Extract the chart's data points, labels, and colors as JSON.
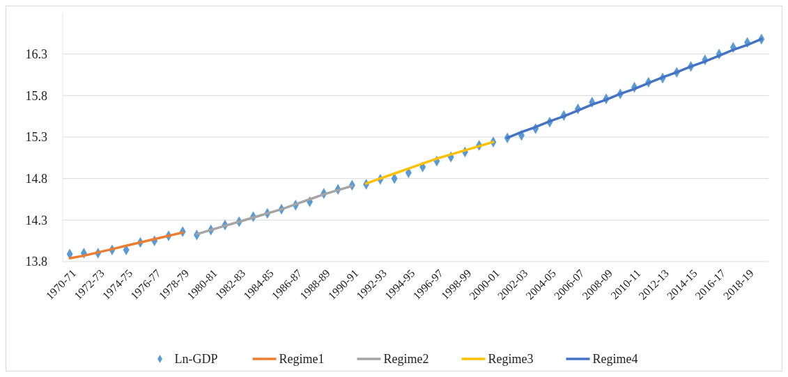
{
  "chart_data": {
    "type": "line",
    "categories": [
      "1970-71",
      null,
      "1972-73",
      null,
      "1974-75",
      null,
      "1976-77",
      null,
      "1978-79",
      null,
      "1980-81",
      null,
      "1982-83",
      null,
      "1984-85",
      null,
      "1986-87",
      null,
      "1988-89",
      null,
      "1990-91",
      null,
      "1992-93",
      null,
      "1994-95",
      null,
      "1996-97",
      null,
      "1998-99",
      null,
      "2000-01",
      null,
      "2002-03",
      null,
      "2004-05",
      null,
      "2006-07",
      null,
      "2008-09",
      null,
      "2010-11",
      null,
      "2012-13",
      null,
      "2014-15",
      null,
      "2016-17",
      null,
      "2018-19",
      null
    ],
    "ylim": [
      13.8,
      16.8
    ],
    "yticks": [
      13.8,
      14.3,
      14.8,
      15.3,
      15.8,
      16.3
    ],
    "grid": "y",
    "legend": "bottom",
    "series": [
      {
        "name": "Ln-GDP",
        "type": "scatter",
        "marker": "diamond",
        "color": "#5b9bd5",
        "values": [
          13.89,
          13.9,
          13.9,
          13.94,
          13.94,
          14.03,
          14.05,
          14.11,
          14.16,
          14.12,
          14.18,
          14.24,
          14.28,
          14.34,
          14.38,
          14.43,
          14.48,
          14.52,
          14.62,
          14.67,
          14.72,
          14.73,
          14.79,
          14.8,
          14.87,
          14.94,
          15.01,
          15.06,
          15.12,
          15.2,
          15.24,
          15.29,
          15.32,
          15.4,
          15.48,
          15.56,
          15.64,
          15.72,
          15.76,
          15.82,
          15.9,
          15.96,
          16.01,
          16.08,
          16.15,
          16.23,
          16.3,
          16.38,
          16.44,
          16.48
        ]
      },
      {
        "name": "Regime1",
        "marker": "none",
        "color": "#ed7d31",
        "values": [
          13.84,
          13.87,
          13.91,
          13.95,
          13.99,
          14.03,
          14.07,
          14.11,
          14.15,
          null,
          null,
          null,
          null,
          null,
          null,
          null,
          null,
          null,
          null,
          null,
          null,
          null,
          null,
          null,
          null,
          null,
          null,
          null,
          null,
          null,
          null,
          null,
          null,
          null,
          null,
          null,
          null,
          null,
          null,
          null,
          null,
          null,
          null,
          null,
          null,
          null,
          null,
          null,
          null,
          null
        ]
      },
      {
        "name": "Regime2",
        "marker": "none",
        "color": "#a5a5a5",
        "values": [
          null,
          null,
          null,
          null,
          null,
          null,
          null,
          null,
          null,
          14.13,
          14.18,
          14.23,
          14.28,
          14.33,
          14.38,
          14.43,
          14.49,
          14.55,
          14.61,
          14.66,
          14.71,
          null,
          null,
          null,
          null,
          null,
          null,
          null,
          null,
          null,
          null,
          null,
          null,
          null,
          null,
          null,
          null,
          null,
          null,
          null,
          null,
          null,
          null,
          null,
          null,
          null,
          null,
          null,
          null,
          null
        ]
      },
      {
        "name": "Regime3",
        "marker": "none",
        "color": "#ffc000",
        "values": [
          null,
          null,
          null,
          null,
          null,
          null,
          null,
          null,
          null,
          null,
          null,
          null,
          null,
          null,
          null,
          null,
          null,
          null,
          null,
          null,
          null,
          14.74,
          14.8,
          14.86,
          14.92,
          14.98,
          15.04,
          15.09,
          15.14,
          15.19,
          15.24,
          null,
          null,
          null,
          null,
          null,
          null,
          null,
          null,
          null,
          null,
          null,
          null,
          null,
          null,
          null,
          null,
          null,
          null,
          null
        ]
      },
      {
        "name": "Regime4",
        "marker": "none",
        "color": "#4472c4",
        "values": [
          null,
          null,
          null,
          null,
          null,
          null,
          null,
          null,
          null,
          null,
          null,
          null,
          null,
          null,
          null,
          null,
          null,
          null,
          null,
          null,
          null,
          null,
          null,
          null,
          null,
          null,
          null,
          null,
          null,
          null,
          null,
          15.29,
          15.36,
          15.42,
          15.49,
          15.55,
          15.62,
          15.69,
          15.75,
          15.82,
          15.88,
          15.95,
          16.02,
          16.08,
          16.15,
          16.21,
          16.28,
          16.35,
          16.41,
          16.48
        ]
      }
    ]
  }
}
